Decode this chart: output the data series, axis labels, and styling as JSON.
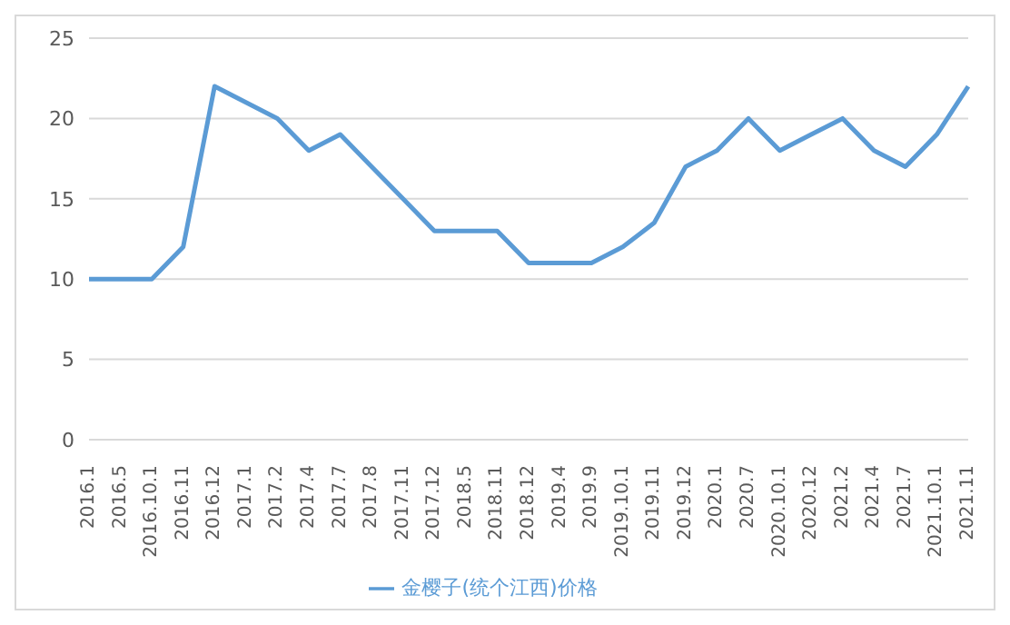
{
  "chart_data": {
    "type": "line",
    "categories": [
      "2016.1",
      "2016.5",
      "2016.10.1",
      "2016.11",
      "2016.12",
      "2017.1",
      "2017.2",
      "2017.4",
      "2017.7",
      "2017.8",
      "2017.11",
      "2017.12",
      "2018.5",
      "2018.11",
      "2018.12",
      "2019.4",
      "2019.9",
      "2019.10.1",
      "2019.11",
      "2019.12",
      "2020.1",
      "2020.7",
      "2020.10.1",
      "2020.12",
      "2021.2",
      "2021.4",
      "2021.7",
      "2021.10.1",
      "2021.11"
    ],
    "series": [
      {
        "name": "金樱子(统个江西)价格",
        "color": "#5b9bd5",
        "values": [
          10,
          10,
          10,
          12,
          22,
          21,
          20,
          18,
          19,
          17,
          15,
          13,
          13,
          13,
          11,
          11,
          11,
          12,
          13.5,
          17,
          18,
          20,
          18,
          19,
          20,
          18,
          17,
          19,
          22
        ]
      }
    ],
    "ylim": [
      0,
      25
    ],
    "yticks": [
      0,
      5,
      10,
      15,
      20,
      25
    ],
    "grid": "y",
    "legend": "bottom",
    "marker": "none",
    "line_style": "solid"
  }
}
